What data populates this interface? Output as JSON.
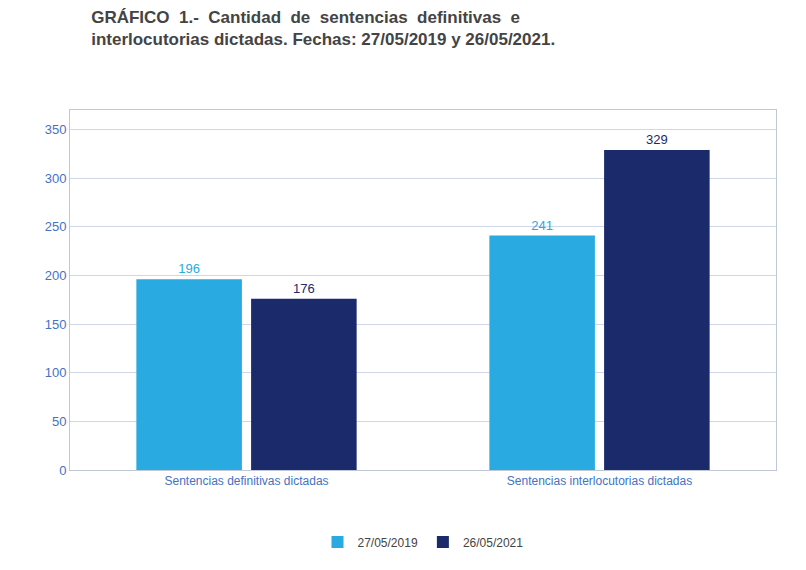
{
  "chart_data": {
    "type": "bar",
    "title": "GRÁFICO  1.-  Cantidad  de  sentencias  definitivas  e\ninterlocutorias dictadas. Fechas: 27/05/2019 y 26/05/2021.",
    "categories": [
      "Sentencias definitivas dictadas",
      "Sentencias interlocutorias dictadas"
    ],
    "series": [
      {
        "name": "27/05/2019",
        "color": "#29ABE2",
        "values": [
          196,
          241
        ]
      },
      {
        "name": "26/05/2021",
        "color": "#1B2A6B",
        "values": [
          176,
          329
        ]
      }
    ],
    "ylim": [
      0,
      370
    ],
    "yticks": [
      0,
      50,
      100,
      150,
      200,
      250,
      300,
      350
    ],
    "grid": true,
    "legend": "bottom",
    "data_labels": true
  }
}
